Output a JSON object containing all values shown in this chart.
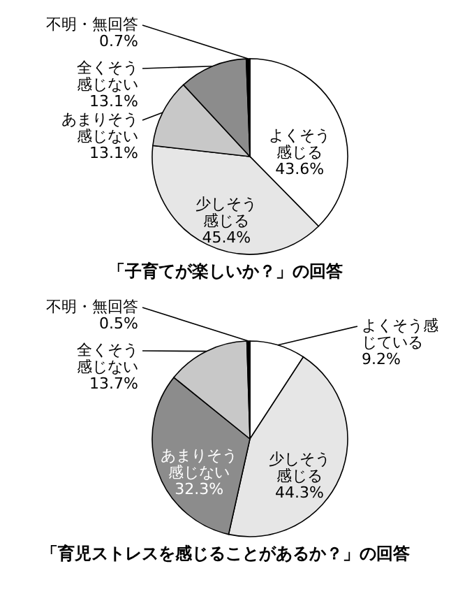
{
  "chart_data": [
    {
      "type": "pie",
      "title": "「子育てが楽しいか？」の回答",
      "categories": [
        "よくそう感じる",
        "少しそう感じる",
        "あまりそう感じない",
        "全くそう感じない",
        "不明・無回答"
      ],
      "values": [
        43.6,
        45.4,
        13.1,
        13.1,
        0.7
      ],
      "value_labels": [
        "43.6%",
        "45.4%",
        "13.1%",
        "13.1%",
        "0.7%"
      ],
      "colors": [
        "#ffffff",
        "#e6e6e6",
        "#c8c8c8",
        "#8c8c8c",
        "#000000"
      ]
    },
    {
      "type": "pie",
      "title": "「育児ストレスを感じることがあるか？」の回答",
      "categories": [
        "よくそう感じている",
        "少しそう感じる",
        "あまりそう感じない",
        "全くそう感じない",
        "不明・無回答"
      ],
      "values": [
        9.2,
        44.3,
        32.3,
        13.7,
        0.5
      ],
      "value_labels": [
        "9.2%",
        "44.3%",
        "32.3%",
        "13.7%",
        "0.5%"
      ],
      "colors": [
        "#ffffff",
        "#e6e6e6",
        "#8c8c8c",
        "#c8c8c8",
        "#000000"
      ]
    }
  ]
}
